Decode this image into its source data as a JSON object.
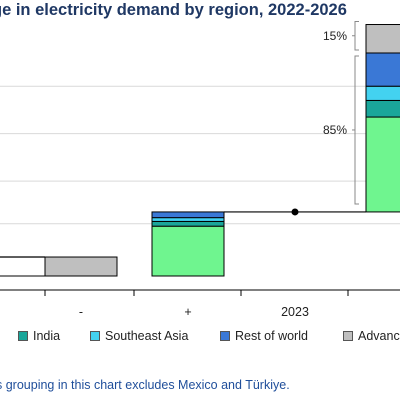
{
  "title": "ge in electricity demand by region, 2022-2026",
  "chart_data": {
    "type": "bar",
    "subtype": "waterfall",
    "title": "ge in electricity demand by region, 2022-2026",
    "categories": [
      "",
      "-",
      "+",
      "2023",
      ""
    ],
    "series": [
      {
        "key": "advanced",
        "name": "Advanc",
        "color": "#bfbfbf"
      },
      {
        "key": "china",
        "color": "#6ff58f"
      },
      {
        "key": "india",
        "name": "India",
        "color": "#1aa69a"
      },
      {
        "key": "sea",
        "name": "Southeast Asia",
        "color": "#43d2f0"
      },
      {
        "key": "row",
        "name": "Rest of world",
        "color": "#3a78d6"
      }
    ],
    "steps": [
      {
        "category": "",
        "kind": "base",
        "from": 0,
        "to": 4
      },
      {
        "category": "-",
        "kind": "decrease",
        "from": 4,
        "to": 0,
        "segments": [
          {
            "series": "advanced",
            "value": -4
          }
        ]
      },
      {
        "category": "+",
        "kind": "increase",
        "from": 0,
        "to": 13.5,
        "segments": [
          {
            "series": "china",
            "value": 10.5
          },
          {
            "series": "india",
            "value": 1
          },
          {
            "series": "sea",
            "value": 0.8
          },
          {
            "series": "row",
            "value": 1.2
          }
        ]
      },
      {
        "category": "2023",
        "kind": "level",
        "value": 13.5
      },
      {
        "category": "",
        "kind": "increase",
        "from": 13.5,
        "to": 53,
        "segments": [
          {
            "series": "china",
            "value": 20
          },
          {
            "series": "india",
            "value": 3.5
          },
          {
            "series": "sea",
            "value": 3
          },
          {
            "series": "row",
            "value": 7
          },
          {
            "series": "advanced",
            "value": 6
          }
        ]
      }
    ],
    "annotations": [
      {
        "text": "15%",
        "series": "advanced"
      },
      {
        "text": "85%",
        "series": "emerging"
      }
    ],
    "ylim": [
      -4,
      53
    ],
    "gridlines": [
      11,
      20,
      30,
      40
    ],
    "grid": true,
    "legend_position": "bottom"
  },
  "legend": [
    {
      "label": "India",
      "color": "#1aa69a"
    },
    {
      "label": "Southeast Asia",
      "color": "#43d2f0"
    },
    {
      "label": "Rest of world",
      "color": "#3a78d6"
    },
    {
      "label": "Advanc",
      "color": "#bfbfbf"
    }
  ],
  "note": "s grouping in this chart excludes Mexico and Türkiye."
}
